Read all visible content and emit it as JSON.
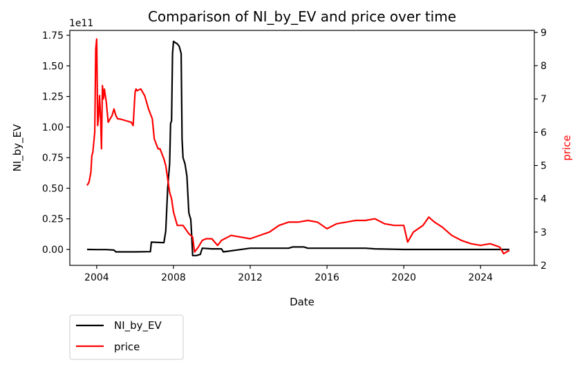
{
  "chart_data": {
    "type": "line",
    "title": "Comparison of NI_by_EV and price over time",
    "xlabel": "Date",
    "ylabel_left": "NI_by_EV",
    "ylabel_right": "price",
    "left_offset_label": "1e11",
    "xlim": [
      2002.6,
      2026.8
    ],
    "ylim_left": [
      -0.13,
      1.79
    ],
    "ylim_right": [
      2.0,
      9.06
    ],
    "x_ticks": [
      2004,
      2008,
      2012,
      2016,
      2020,
      2024
    ],
    "x_tick_labels": [
      "2004",
      "2008",
      "2012",
      "2016",
      "2020",
      "2024"
    ],
    "left_ticks": [
      0.0,
      0.25,
      0.5,
      0.75,
      1.0,
      1.25,
      1.5,
      1.75
    ],
    "left_tick_labels": [
      "0.00",
      "0.25",
      "0.50",
      "0.75",
      "1.00",
      "1.25",
      "1.50",
      "1.75"
    ],
    "right_ticks": [
      2,
      3,
      4,
      5,
      6,
      7,
      8,
      9
    ],
    "right_tick_labels": [
      "2",
      "3",
      "4",
      "5",
      "6",
      "7",
      "8",
      "9"
    ],
    "legend_position": "below-left",
    "colors": {
      "ni": "#000000",
      "price": "#ff0000"
    },
    "series": [
      {
        "name": "NI_by_EV",
        "axis": "left",
        "color": "#000000",
        "x": [
          2003.5,
          2004.0,
          2004.5,
          2004.9,
          2005.0,
          2006.0,
          2006.8,
          2006.85,
          2007.5,
          2007.6,
          2007.7,
          2007.8,
          2007.85,
          2007.9,
          2007.95,
          2008.0,
          2008.1,
          2008.2,
          2008.3,
          2008.4,
          2008.45,
          2008.5,
          2008.6,
          2008.7,
          2008.8,
          2008.85,
          2008.9,
          2008.95,
          2009.0,
          2009.2,
          2009.4,
          2009.5,
          2010.0,
          2010.5,
          2010.6,
          2012.0,
          2014.0,
          2014.2,
          2014.8,
          2015.0,
          2016.0,
          2018.0,
          2018.5,
          2020.0,
          2022.0,
          2024.0,
          2025.5
        ],
        "y": [
          0.0,
          -0.001,
          -0.001,
          -0.005,
          -0.02,
          -0.02,
          -0.018,
          0.06,
          0.055,
          0.15,
          0.5,
          0.7,
          1.03,
          1.05,
          1.6,
          1.7,
          1.69,
          1.68,
          1.66,
          1.6,
          0.9,
          0.75,
          0.7,
          0.6,
          0.3,
          0.27,
          0.25,
          0.12,
          -0.05,
          -0.05,
          -0.04,
          0.01,
          0.005,
          0.005,
          -0.02,
          0.01,
          0.01,
          0.02,
          0.02,
          0.01,
          0.01,
          0.01,
          0.005,
          0.0,
          0.0,
          0.0,
          0.0
        ]
      },
      {
        "name": "price",
        "axis": "right",
        "color": "#ff0000",
        "x": [
          2003.5,
          2003.6,
          2003.7,
          2003.75,
          2003.8,
          2003.85,
          2003.9,
          2003.95,
          2004.0,
          2004.05,
          2004.1,
          2004.15,
          2004.2,
          2004.25,
          2004.3,
          2004.35,
          2004.4,
          2004.5,
          2004.6,
          2004.7,
          2004.8,
          2004.9,
          2005.0,
          2005.1,
          2005.2,
          2005.5,
          2005.8,
          2005.9,
          2006.0,
          2006.05,
          2006.1,
          2006.3,
          2006.5,
          2006.7,
          2006.9,
          2007.0,
          2007.2,
          2007.3,
          2007.5,
          2007.6,
          2007.7,
          2007.8,
          2007.9,
          2008.0,
          2008.2,
          2008.5,
          2008.8,
          2009.0,
          2009.1,
          2009.3,
          2009.5,
          2009.7,
          2010.0,
          2010.3,
          2010.5,
          2011.0,
          2011.5,
          2012.0,
          2013.0,
          2013.5,
          2014.0,
          2014.5,
          2015.0,
          2015.5,
          2016.0,
          2016.5,
          2017.0,
          2017.5,
          2018.0,
          2018.5,
          2019.0,
          2019.5,
          2020.0,
          2020.2,
          2020.5,
          2021.0,
          2021.3,
          2021.6,
          2022.0,
          2022.5,
          2023.0,
          2023.5,
          2024.0,
          2024.5,
          2025.0,
          2025.2,
          2025.5
        ],
        "y": [
          4.4,
          4.5,
          4.8,
          5.3,
          5.4,
          5.7,
          6.0,
          8.5,
          8.8,
          6.2,
          6.5,
          7.1,
          6.5,
          5.5,
          7.4,
          7.0,
          7.3,
          6.9,
          6.3,
          6.4,
          6.5,
          6.7,
          6.5,
          6.4,
          6.4,
          6.35,
          6.3,
          6.2,
          7.2,
          7.3,
          7.25,
          7.3,
          7.1,
          6.7,
          6.4,
          5.8,
          5.5,
          5.5,
          5.2,
          5.0,
          4.6,
          4.2,
          4.0,
          3.6,
          3.2,
          3.2,
          2.95,
          2.85,
          2.4,
          2.55,
          2.75,
          2.8,
          2.8,
          2.6,
          2.75,
          2.9,
          2.85,
          2.8,
          3.0,
          3.2,
          3.3,
          3.3,
          3.35,
          3.3,
          3.1,
          3.25,
          3.3,
          3.35,
          3.35,
          3.4,
          3.25,
          3.2,
          3.2,
          2.7,
          3.0,
          3.2,
          3.45,
          3.3,
          3.15,
          2.9,
          2.75,
          2.65,
          2.6,
          2.65,
          2.55,
          2.35,
          2.45
        ]
      }
    ]
  }
}
